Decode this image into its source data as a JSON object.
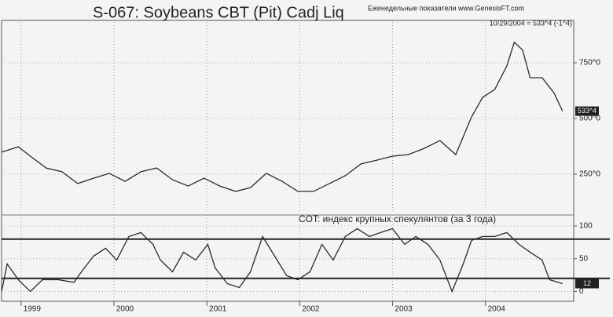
{
  "chart_data": [
    {
      "type": "line",
      "title": "S-067:  Soybeans CBT (Pit) Cadj Liq",
      "subtitle": "Еженедельные показатели www.GenesisFT.com",
      "note": "10/29/2004 = 533^4 (-1^4)",
      "color": "#2a2a2a",
      "last_value_label": "533^4",
      "x": [
        1998.79,
        1998.97,
        1999.1,
        1999.27,
        1999.44,
        1999.61,
        1999.78,
        1999.95,
        2000.12,
        2000.29,
        2000.46,
        2000.63,
        2000.8,
        2000.97,
        2001.14,
        2001.31,
        2001.47,
        2001.64,
        2001.81,
        2001.98,
        2002.15,
        2002.32,
        2002.49,
        2002.66,
        2002.83,
        2003.0,
        2003.17,
        2003.34,
        2003.51,
        2003.68,
        2003.85,
        2003.97,
        2004.1,
        2004.23,
        2004.31,
        2004.4,
        2004.48,
        2004.61,
        2004.74,
        2004.83
      ],
      "values": [
        349,
        373,
        331,
        278,
        261,
        208,
        232,
        254,
        218,
        261,
        278,
        225,
        197,
        232,
        197,
        173,
        190,
        254,
        218,
        173,
        173,
        208,
        243,
        296,
        313,
        331,
        338,
        366,
        401,
        338,
        507,
        595,
        630,
        736,
        842,
        807,
        683,
        683,
        613,
        533
      ],
      "xlim": [
        1998.79,
        2004.95
      ],
      "ylim": [
        74,
        933
      ],
      "yticks": [
        {
          "value": 250,
          "label": "250^0"
        },
        {
          "value": 500,
          "label": "500^0"
        },
        {
          "value": 750,
          "label": "750^0"
        }
      ]
    },
    {
      "type": "line",
      "title": "COT: индекс крупных спекулянтов (за 3 года)",
      "color": "#2a2a2a",
      "x": [
        1998.79,
        1998.85,
        1998.97,
        1999.1,
        1999.23,
        1999.4,
        1999.57,
        1999.65,
        1999.78,
        1999.91,
        2000.03,
        2000.16,
        2000.29,
        2000.42,
        2000.5,
        2000.63,
        2000.75,
        2000.88,
        2001.01,
        2001.09,
        2001.22,
        2001.35,
        2001.47,
        2001.6,
        2001.73,
        2001.86,
        2001.98,
        2002.11,
        2002.24,
        2002.36,
        2002.49,
        2002.62,
        2002.75,
        2002.87,
        2003.0,
        2003.13,
        2003.25,
        2003.38,
        2003.51,
        2003.64,
        2003.76,
        2003.85,
        2003.97,
        2004.1,
        2004.23,
        2004.36,
        2004.48,
        2004.61,
        2004.69,
        2004.83
      ],
      "values": [
        0,
        42,
        18,
        0,
        18,
        18,
        14,
        30,
        54,
        66,
        48,
        84,
        90,
        72,
        48,
        30,
        60,
        48,
        72,
        36,
        12,
        6,
        30,
        84,
        54,
        24,
        18,
        30,
        72,
        48,
        84,
        96,
        84,
        90,
        96,
        72,
        84,
        72,
        48,
        0,
        42,
        78,
        84,
        84,
        90,
        72,
        60,
        48,
        18,
        12
      ],
      "reference_lines": [
        80,
        20
      ],
      "xlim": [
        1998.79,
        2004.95
      ],
      "ylim": [
        -15,
        112
      ],
      "xticks": [
        1999,
        2000,
        2001,
        2002,
        2003,
        2004
      ],
      "yticks": [
        0,
        50,
        100
      ]
    }
  ]
}
